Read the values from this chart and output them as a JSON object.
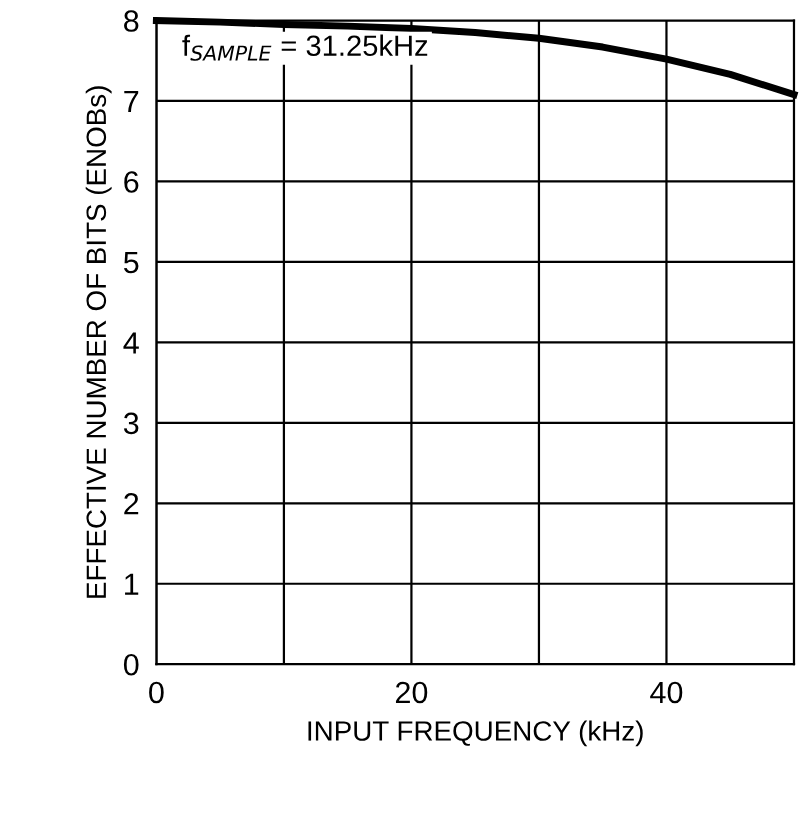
{
  "chart_data": {
    "type": "line",
    "xlabel": "INPUT FREQUENCY (kHz)",
    "ylabel": "EFFECTIVE NUMBER OF BITS (ENOBs)",
    "x": [
      0,
      5,
      10,
      15,
      20,
      25,
      30,
      35,
      40,
      45,
      50
    ],
    "series": [
      {
        "color": "#000000",
        "values": [
          8.0,
          7.98,
          7.95,
          7.93,
          7.9,
          7.85,
          7.78,
          7.67,
          7.52,
          7.33,
          7.08
        ]
      }
    ],
    "xlim": [
      0,
      50
    ],
    "ylim": [
      0,
      8
    ],
    "xticks": [
      0,
      {
        "value": 10,
        "label": null
      },
      20,
      {
        "value": 30,
        "label": null
      },
      40
    ],
    "yticks": [
      0,
      1,
      2,
      3,
      4,
      5,
      6,
      7,
      8
    ],
    "grid": true,
    "marker": "none",
    "line_style": "solid",
    "annotations": [
      "f$_{SAMPLE}$ = 31.25kHz"
    ]
  }
}
